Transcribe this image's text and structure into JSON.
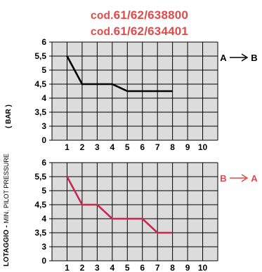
{
  "codes": [
    {
      "prefix": "cod.",
      "value": "61/62/638800"
    },
    {
      "prefix": "cod.",
      "value": "61/62/634401"
    }
  ],
  "axis_title": "LOTAGGIO - MIN. PILOT PRESSURE",
  "axis_unit": "( BAR )",
  "colors": {
    "black_series": "#000000",
    "red_series": "#c8284f",
    "label_red": "#e04a4a",
    "grid_bg": "#dcdcdc",
    "grid_line": "#000000"
  },
  "chart_data": [
    {
      "type": "line",
      "title": "",
      "flow_label": {
        "from": "A",
        "to": "B",
        "color": "#000000"
      },
      "x": [
        1,
        2,
        3,
        4,
        5,
        6,
        7,
        8
      ],
      "series": [
        {
          "values": [
            5.5,
            4.5,
            4.5,
            4.5,
            4.25,
            4.25,
            4.25,
            4.25
          ],
          "color": "#000000"
        }
      ],
      "xlim": [
        0.5,
        10
      ],
      "ylim": [
        0,
        6
      ],
      "x_ticks": [
        "1",
        "2",
        "3",
        "4",
        "5",
        "6",
        "7",
        "8",
        "9",
        "10"
      ],
      "y_ticks": [
        "0",
        "3",
        "3,5",
        "4",
        "4,5",
        "5",
        "5,5",
        "6"
      ],
      "grid": true
    },
    {
      "type": "line",
      "title": "",
      "flow_label": {
        "from": "B",
        "to": "A",
        "color": "#e04a4a"
      },
      "x": [
        1,
        2,
        3,
        4,
        5,
        6,
        7,
        8
      ],
      "series": [
        {
          "values": [
            5.5,
            4.5,
            4.5,
            4.0,
            4.0,
            4.0,
            3.5,
            3.5
          ],
          "color": "#c8284f"
        }
      ],
      "xlim": [
        0.5,
        10
      ],
      "ylim": [
        0,
        6
      ],
      "x_ticks": [
        "1",
        "2",
        "3",
        "4",
        "5",
        "6",
        "7",
        "8",
        "9",
        "10"
      ],
      "y_ticks": [
        "0",
        "3",
        "3,5",
        "4",
        "4,5",
        "5",
        "5,5",
        "6"
      ],
      "grid": true
    }
  ]
}
